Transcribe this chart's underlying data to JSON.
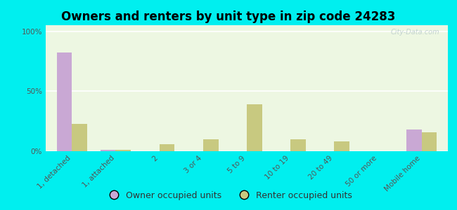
{
  "title": "Owners and renters by unit type in zip code 24283",
  "categories": [
    "1, detached",
    "1, attached",
    "2",
    "3 or 4",
    "5 to 9",
    "10 to 19",
    "20 to 49",
    "50 or more",
    "Mobile home"
  ],
  "owner_values": [
    82,
    1,
    0,
    0,
    0,
    0,
    0,
    0,
    18
  ],
  "renter_values": [
    23,
    1,
    6,
    10,
    39,
    10,
    8,
    0,
    16
  ],
  "owner_color": "#c9a8d4",
  "renter_color": "#c8c980",
  "outer_bg": "#00efef",
  "plot_bg": "#edf7e2",
  "ylabel_ticks": [
    "0%",
    "50%",
    "100%"
  ],
  "ytick_vals": [
    0,
    50,
    100
  ],
  "ylim": [
    0,
    105
  ],
  "bar_width": 0.35,
  "watermark": "City-Data.com",
  "legend_owner": "Owner occupied units",
  "legend_renter": "Renter occupied units",
  "title_fontsize": 12,
  "tick_fontsize": 7.5
}
